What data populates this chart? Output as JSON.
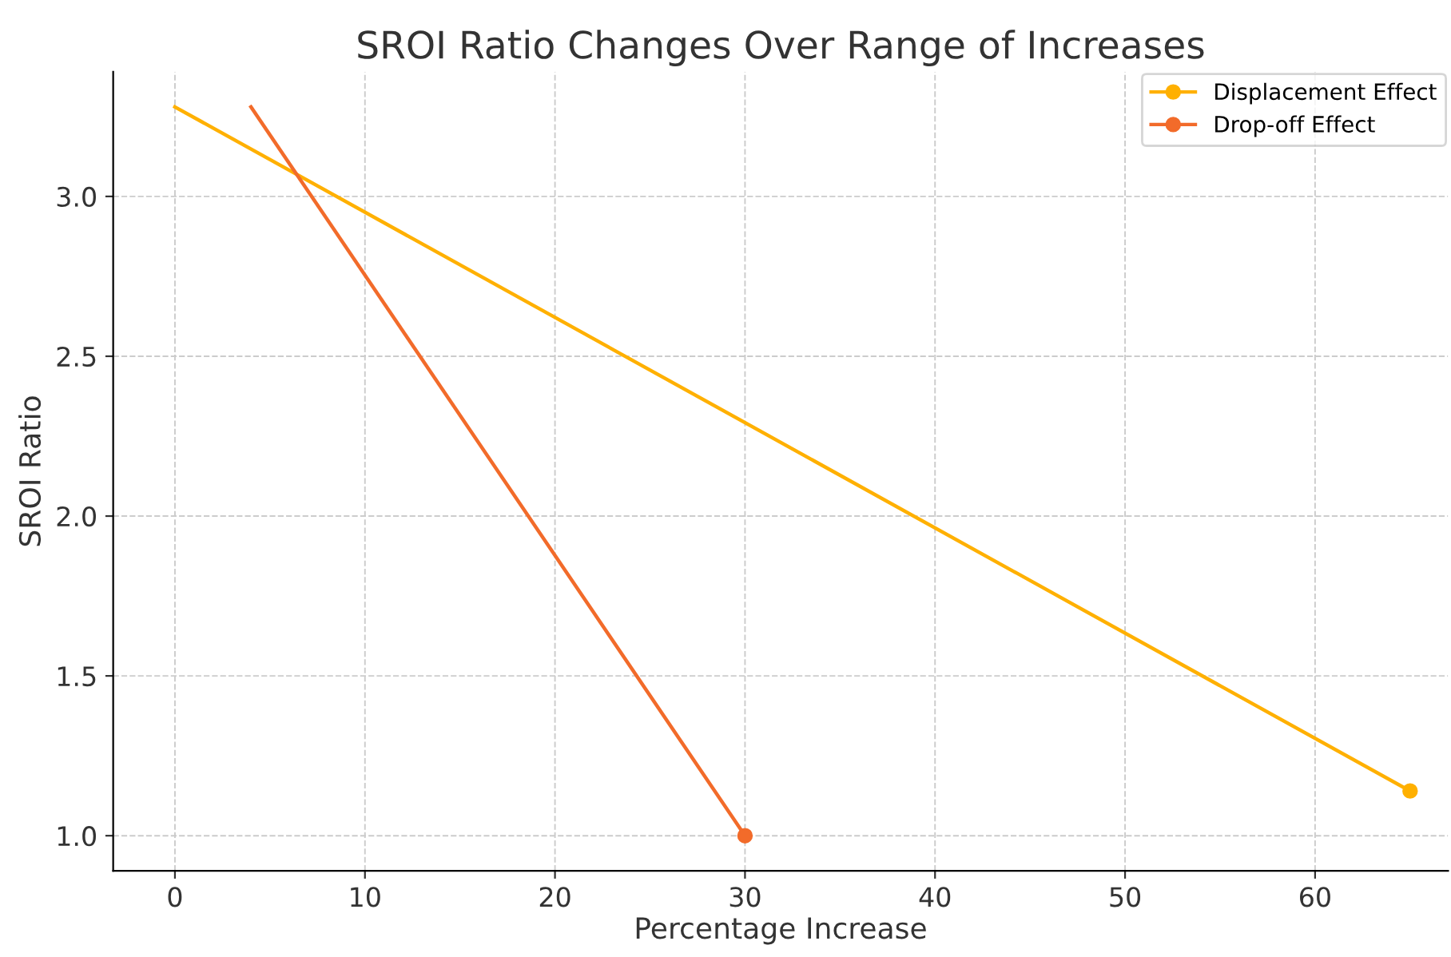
{
  "chart_data": {
    "type": "line",
    "title": "SROI Ratio Changes Over Range of Increases",
    "xlabel": "Percentage Increase",
    "ylabel": "SROI Ratio",
    "series": [
      {
        "name": "Displacement Effect",
        "color": "#ffb000",
        "x": [
          0,
          65
        ],
        "values": [
          3.28,
          1.14
        ]
      },
      {
        "name": "Drop-off Effect",
        "color": "#f26b2a",
        "x": [
          4,
          30
        ],
        "values": [
          3.28,
          1.0
        ]
      }
    ],
    "xlim": [
      -3.25,
      67
    ],
    "xticks": [
      0,
      10,
      20,
      30,
      40,
      50,
      60
    ],
    "ylim": [
      0.89,
      3.39
    ],
    "yticks": [
      {
        "value": 1,
        "label": "1.0"
      },
      1.5,
      {
        "value": 2,
        "label": "2.0"
      },
      2.5,
      {
        "value": 3,
        "label": "3.0"
      }
    ],
    "grid": true,
    "legend": "top right",
    "marker": "circle",
    "line_style": "solid"
  }
}
